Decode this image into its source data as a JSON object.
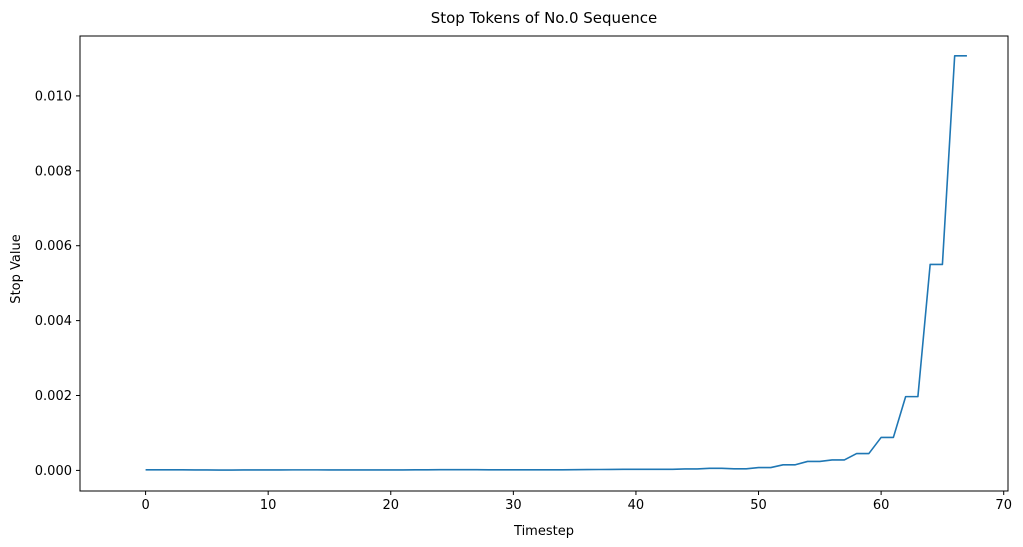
{
  "chart_data": {
    "type": "line",
    "title": "Stop Tokens of No.0 Sequence",
    "xlabel": "Timestep",
    "ylabel": "Stop Value",
    "xlim": [
      -5.35,
      70.35
    ],
    "ylim": [
      -0.00055,
      0.0116
    ],
    "xticks": [
      0,
      10,
      20,
      30,
      40,
      50,
      60,
      70
    ],
    "xtick_labels": [
      "0",
      "10",
      "20",
      "30",
      "40",
      "50",
      "60",
      "70"
    ],
    "yticks": [
      0.0,
      0.002,
      0.004,
      0.006,
      0.008,
      0.01
    ],
    "ytick_labels": [
      "0.000",
      "0.002",
      "0.004",
      "0.006",
      "0.008",
      "0.010"
    ],
    "grid": false,
    "line_color": "#1f77b4",
    "x": [
      0,
      1,
      2,
      3,
      4,
      5,
      6,
      7,
      8,
      9,
      10,
      11,
      12,
      13,
      14,
      15,
      16,
      17,
      18,
      19,
      20,
      21,
      22,
      23,
      24,
      25,
      26,
      27,
      28,
      29,
      30,
      31,
      32,
      33,
      34,
      35,
      36,
      37,
      38,
      39,
      40,
      41,
      42,
      43,
      44,
      45,
      46,
      47,
      48,
      49,
      50,
      51,
      52,
      53,
      54,
      55,
      56,
      57,
      58,
      59,
      60,
      61,
      62,
      63,
      64,
      65,
      66,
      67
    ],
    "values": [
      1.5e-05,
      1.5e-05,
      1.5e-05,
      1.5e-05,
      1.2e-05,
      1.2e-05,
      1e-05,
      1e-05,
      1.2e-05,
      1.2e-05,
      1.2e-05,
      1.2e-05,
      1.4e-05,
      1.4e-05,
      1.4e-05,
      1.3e-05,
      1.3e-05,
      1.2e-05,
      1.2e-05,
      1.2e-05,
      1.2e-05,
      1.2e-05,
      1.6e-05,
      1.6e-05,
      1.8e-05,
      1.8e-05,
      1.8e-05,
      1.8e-05,
      1.6e-05,
      1.6e-05,
      1.5e-05,
      1.5e-05,
      1.5e-05,
      1.6e-05,
      1.6e-05,
      1.8e-05,
      2.2e-05,
      2.4e-05,
      2.6e-05,
      2.8e-05,
      2.8e-05,
      2.8e-05,
      2.8e-05,
      2.8e-05,
      3.8e-05,
      3.8e-05,
      5.5e-05,
      5.5e-05,
      4.2e-05,
      4.2e-05,
      7.5e-05,
      7.5e-05,
      0.00015,
      0.00015,
      0.00024,
      0.00024,
      0.00028,
      0.00028,
      0.00045,
      0.00045,
      0.00088,
      0.00088,
      0.00197,
      0.00197,
      0.0055,
      0.0055,
      0.01107,
      0.01107
    ]
  }
}
